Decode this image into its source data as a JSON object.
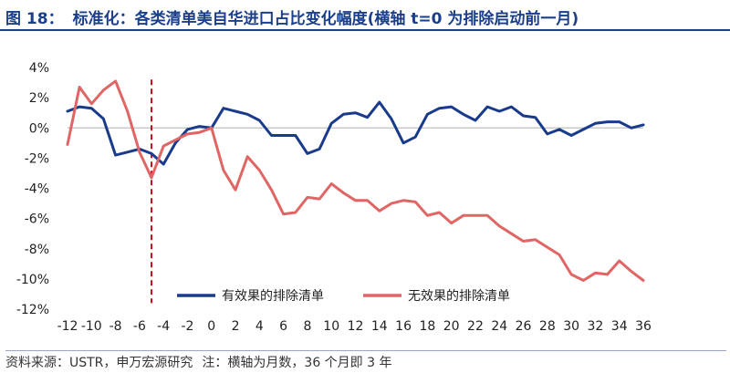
{
  "header": {
    "figure_no": "图 18：",
    "title": "标准化：各类清单美自华进口占比变化幅度(横轴 t=0 为排除启动前一月)"
  },
  "footer": {
    "source": "资料来源：USTR，申万宏源研究",
    "note": "注：横轴为月数，36 个月即 3 年"
  },
  "chart_data": {
    "type": "line",
    "title": "标准化：各类清单美自华进口占比变化幅度(横轴 t=0 为排除启动前一月)",
    "xlabel": "",
    "ylabel": "",
    "xlim": [
      -12,
      36
    ],
    "ylim": [
      -12,
      4
    ],
    "x_ticks": [
      -12,
      -10,
      -8,
      -6,
      -4,
      -2,
      0,
      2,
      4,
      6,
      8,
      10,
      12,
      14,
      16,
      18,
      20,
      22,
      24,
      26,
      28,
      30,
      32,
      34,
      36
    ],
    "x_tick_labels": [
      "-12",
      "-10",
      "-8",
      "-6",
      "-4",
      "-2",
      "0",
      "2",
      "4",
      "6",
      "8",
      "10",
      "12",
      "14",
      "16",
      "18",
      "20",
      "22",
      "24",
      "26",
      "28",
      "30",
      "32",
      "34",
      "36"
    ],
    "y_ticks": [
      4,
      2,
      0,
      -2,
      -4,
      -6,
      -8,
      -10,
      -12
    ],
    "y_tick_labels": [
      "4%",
      "2%",
      "0%",
      "-2%",
      "-4%",
      "-6%",
      "-8%",
      "-10%",
      "-12%"
    ],
    "vline": {
      "x": -5,
      "color": "#c0141b",
      "style": "dashed"
    },
    "legend_position": "bottom",
    "x": [
      -12,
      -11,
      -10,
      -9,
      -8,
      -7,
      -6,
      -5,
      -4,
      -3,
      -2,
      -1,
      0,
      1,
      2,
      3,
      4,
      5,
      6,
      7,
      8,
      9,
      10,
      11,
      12,
      13,
      14,
      15,
      16,
      17,
      18,
      19,
      20,
      21,
      22,
      23,
      24,
      25,
      26,
      27,
      28,
      29,
      30,
      31,
      32,
      33,
      34,
      35,
      36
    ],
    "series": [
      {
        "name": "有效果的排除清单",
        "color": "#1a3a8c",
        "values": [
          1.1,
          1.4,
          1.3,
          0.6,
          -1.8,
          -1.6,
          -1.4,
          -1.7,
          -2.4,
          -1.0,
          -0.1,
          0.1,
          0.0,
          1.3,
          1.1,
          0.9,
          0.5,
          -0.5,
          -0.5,
          -0.5,
          -1.7,
          -1.4,
          0.3,
          0.9,
          1.0,
          0.7,
          1.7,
          0.6,
          -1.0,
          -0.6,
          0.9,
          1.3,
          1.4,
          0.9,
          0.5,
          1.4,
          1.1,
          1.4,
          0.8,
          0.7,
          -0.4,
          -0.1,
          -0.5,
          -0.1,
          0.3,
          0.4,
          0.4,
          0.0,
          0.2
        ]
      },
      {
        "name": "无效果的排除清单",
        "color": "#e06666",
        "values": [
          -1.1,
          2.7,
          1.6,
          2.5,
          3.1,
          1.1,
          -1.6,
          -3.3,
          -1.2,
          -0.8,
          -0.4,
          -0.3,
          0.0,
          -2.8,
          -4.1,
          -1.9,
          -2.8,
          -4.1,
          -5.7,
          -5.6,
          -4.6,
          -4.7,
          -3.7,
          -4.3,
          -4.8,
          -4.8,
          -5.5,
          -5.0,
          -4.8,
          -4.9,
          -5.8,
          -5.6,
          -6.3,
          -5.8,
          -5.8,
          -5.8,
          -6.5,
          -7.0,
          -7.5,
          -7.4,
          -7.9,
          -8.4,
          -9.7,
          -10.1,
          -9.6,
          -9.7,
          -8.8,
          -9.5,
          -10.1
        ]
      }
    ]
  }
}
